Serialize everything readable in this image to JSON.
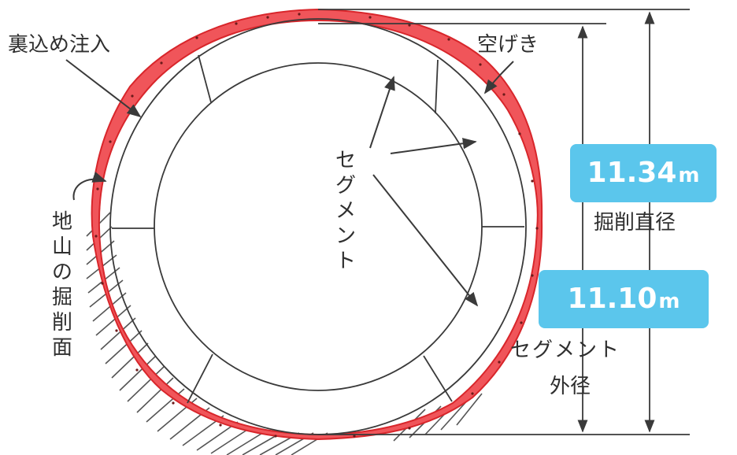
{
  "labels": {
    "backfill": "裏込め注入",
    "void": "空げき",
    "segment_center": "セグメント",
    "excavated_ground": "地山の掘削面",
    "excavation_diameter": "掘削直径",
    "segment_outer_1": "セグメント",
    "segment_outer_2": "外径"
  },
  "badges": {
    "excavation": {
      "value": "11.34",
      "unit": "m"
    },
    "segment": {
      "value": "11.10",
      "unit": "m"
    }
  },
  "colors": {
    "grout_fill": "#f0555a",
    "grout_stroke": "#d8262b",
    "line": "#3a3a3a",
    "badge": "#5bc6ec"
  }
}
